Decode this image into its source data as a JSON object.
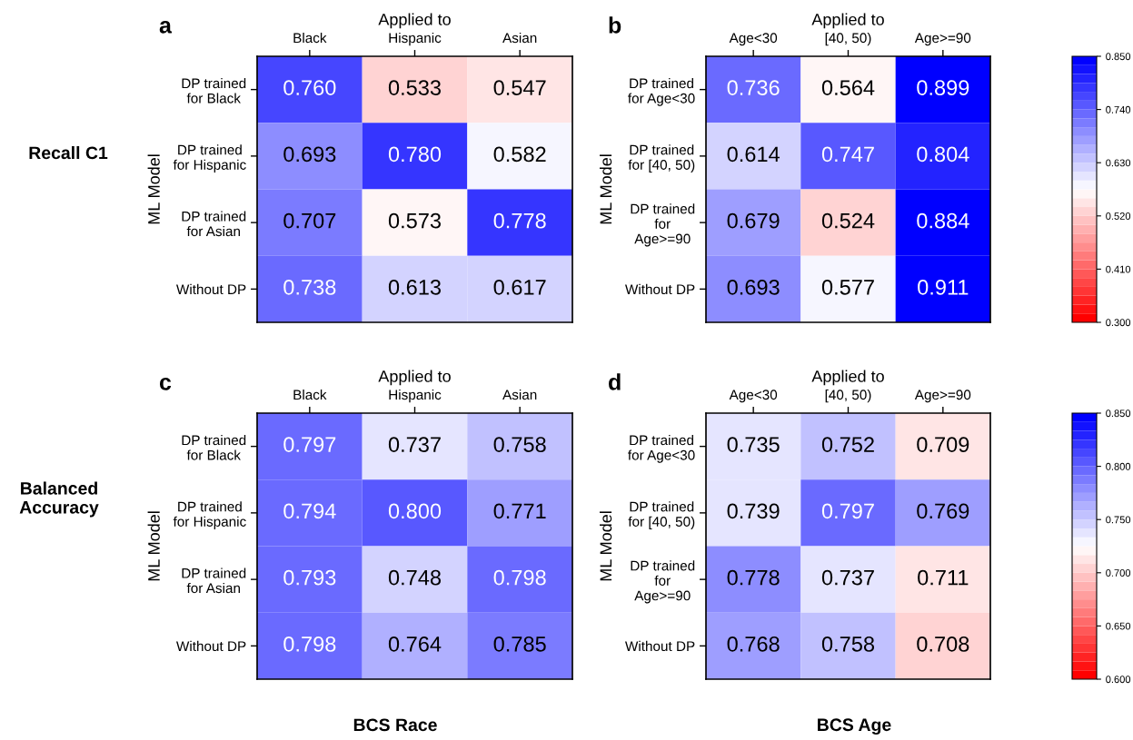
{
  "chart_data": [
    {
      "type": "heatmap",
      "title": "a",
      "xlabel": "Applied to",
      "ylabel": "ML Model",
      "categories": [
        "Black",
        "Hispanic",
        "Asian"
      ],
      "y_categories": [
        "DP trained\nfor Black",
        "DP trained\nfor Hispanic",
        "DP trained\nfor Asian",
        "Without DP"
      ],
      "cells": [
        [
          0.76,
          0.533,
          0.547
        ],
        [
          0.693,
          0.78,
          0.582
        ],
        [
          0.707,
          0.573,
          0.778
        ],
        [
          0.738,
          0.613,
          0.617
        ]
      ],
      "cell_labels": [
        [
          "0.760",
          "0.533",
          "0.547"
        ],
        [
          "0.693",
          "0.780",
          "0.582"
        ],
        [
          "0.707",
          "0.573",
          "0.778"
        ],
        [
          "0.738",
          "0.613",
          "0.617"
        ]
      ],
      "annotations": [
        "Recall C1"
      ]
    },
    {
      "type": "heatmap",
      "title": "b",
      "xlabel": "Applied to",
      "ylabel": "ML Model",
      "categories": [
        "Age<30",
        "[40, 50)",
        "Age>=90"
      ],
      "y_categories": [
        "DP trained\nfor Age<30",
        "DP trained\nfor [40, 50)",
        "DP trained\nfor\nAge>=90",
        "Without DP"
      ],
      "cells": [
        [
          0.736,
          0.564,
          0.899
        ],
        [
          0.614,
          0.747,
          0.804
        ],
        [
          0.679,
          0.524,
          0.884
        ],
        [
          0.693,
          0.577,
          0.911
        ]
      ],
      "data_labels": true,
      "clim": [
        0.3,
        0.85
      ],
      "cticks": [
        {
          "value": 0.3,
          "label": "0.300"
        },
        {
          "value": 0.41,
          "label": "0.410"
        },
        {
          "value": 0.52,
          "label": "0.520"
        },
        {
          "value": 0.63,
          "label": "0.630"
        },
        {
          "value": 0.74,
          "label": "0.740"
        },
        {
          "value": 0.85,
          "label": "0.850"
        }
      ]
    },
    {
      "type": "heatmap",
      "title": "c",
      "xlabel": "Applied to",
      "ylabel": "ML Model",
      "categories": [
        "Black",
        "Hispanic",
        "Asian"
      ],
      "y_categories": [
        "DP trained\nfor Black",
        "DP trained\nfor Hispanic",
        "DP trained\nfor Asian",
        "Without DP"
      ],
      "cells": [
        [
          0.797,
          0.737,
          0.758
        ],
        [
          0.794,
          0.8,
          0.771
        ],
        [
          0.793,
          0.748,
          0.798
        ],
        [
          0.798,
          0.764,
          0.785
        ]
      ],
      "cell_labels": [
        [
          "0.797",
          "0.737",
          "0.758"
        ],
        [
          "0.794",
          "0.800",
          "0.771"
        ],
        [
          "0.793",
          "0.748",
          "0.798"
        ],
        [
          "0.798",
          "0.764",
          "0.785"
        ]
      ],
      "annotations": [
        "Balanced\nAccuracy",
        "BCS Race"
      ]
    },
    {
      "type": "heatmap",
      "title": "d",
      "xlabel": "Applied to",
      "ylabel": "ML Model",
      "categories": [
        "Age<30",
        "[40, 50)",
        "Age>=90"
      ],
      "y_categories": [
        "DP trained\nfor Age<30",
        "DP trained\nfor [40, 50)",
        "DP trained\nfor\nAge>=90",
        "Without DP"
      ],
      "cells": [
        [
          0.735,
          0.752,
          0.709
        ],
        [
          0.739,
          0.797,
          0.769
        ],
        [
          0.778,
          0.737,
          0.711
        ],
        [
          0.768,
          0.758,
          0.708
        ]
      ],
      "data_labels": true,
      "clim": [
        0.6,
        0.85
      ],
      "cticks": [
        {
          "value": 0.6,
          "label": "0.600"
        },
        {
          "value": 0.65,
          "label": "0.650"
        },
        {
          "value": 0.7,
          "label": "0.700"
        },
        {
          "value": 0.75,
          "label": "0.750"
        },
        {
          "value": 0.8,
          "label": "0.800"
        },
        {
          "value": 0.85,
          "label": "0.850"
        }
      ],
      "annotations": [
        "BCS Age"
      ]
    }
  ]
}
